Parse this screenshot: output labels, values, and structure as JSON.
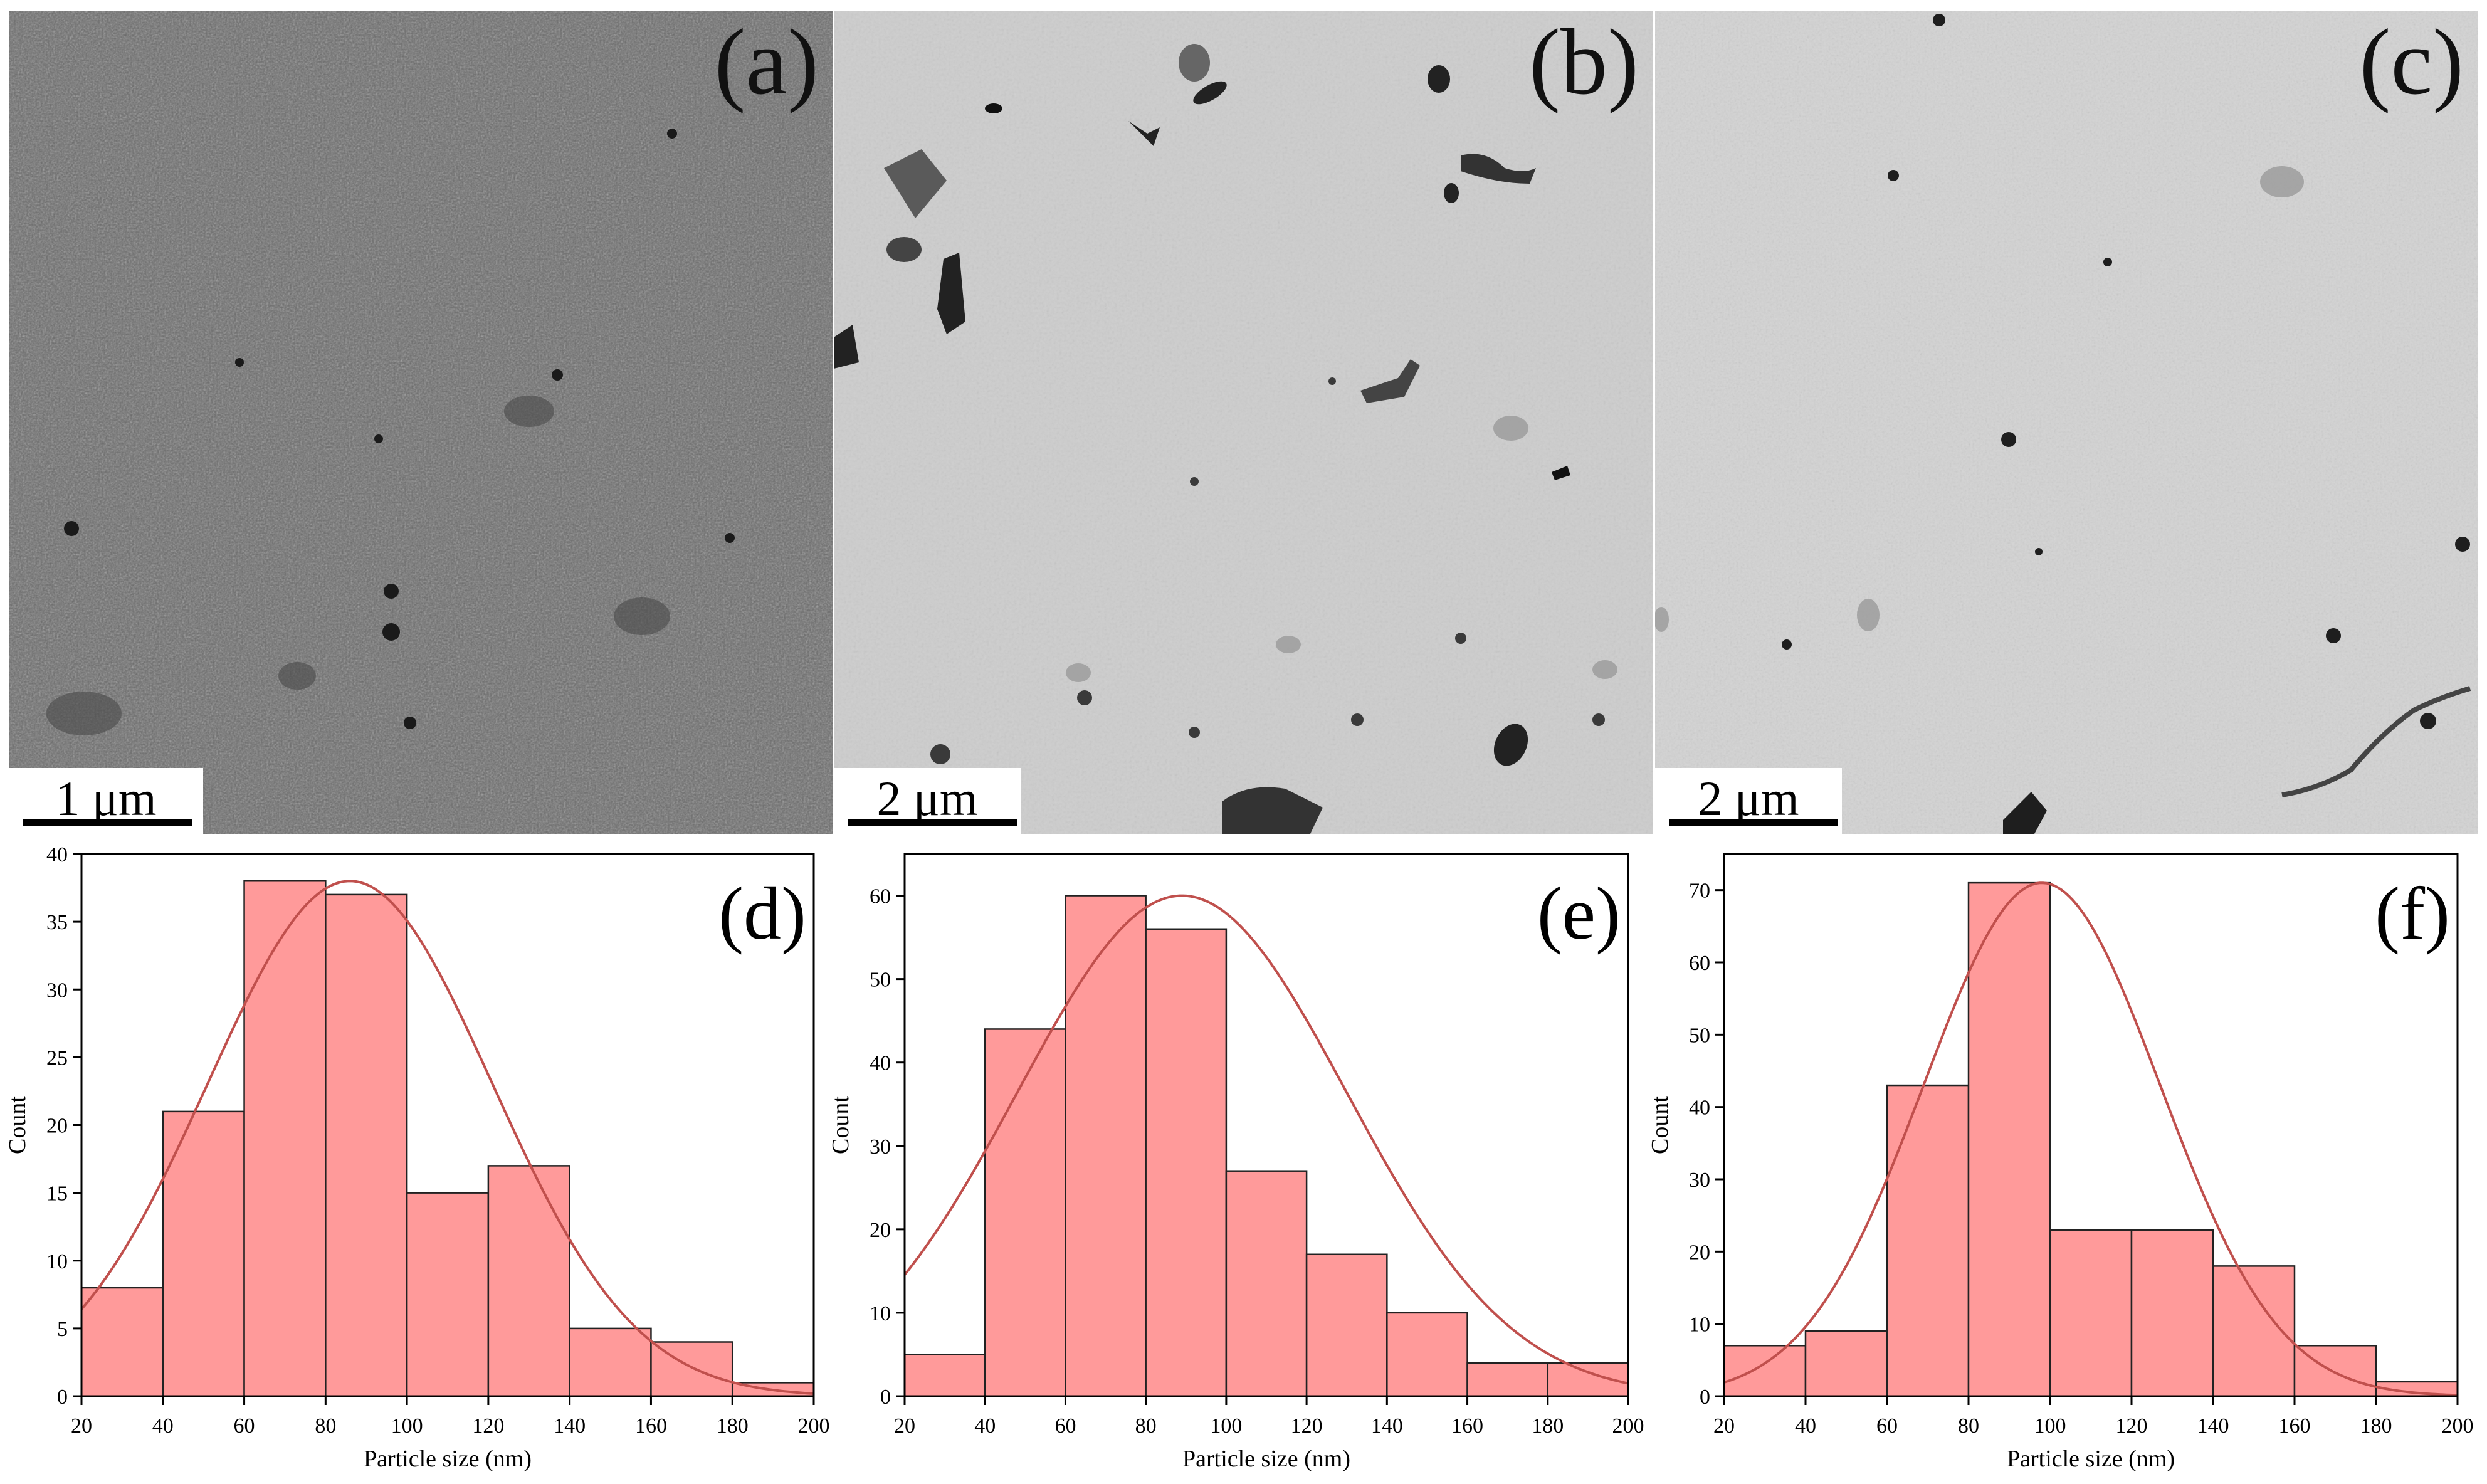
{
  "micrographs": [
    {
      "letter": "(a)",
      "scale_label": "1 μm"
    },
    {
      "letter": "(b)",
      "scale_label": "2 μm"
    },
    {
      "letter": "(c)",
      "scale_label": "2 μm"
    }
  ],
  "colors": {
    "bar_fill": "#ff9a9a",
    "bar_stroke": "#222222",
    "fit_curve": "#c0504d"
  },
  "chart_data": [
    {
      "type": "bar",
      "panel_letter": "(d)",
      "xlabel": "Particle size (nm)",
      "ylabel": "Count",
      "xlim": [
        20,
        200
      ],
      "ylim": [
        0,
        40
      ],
      "xticks": [
        20,
        40,
        60,
        80,
        100,
        120,
        140,
        160,
        180,
        200
      ],
      "yticks": [
        0,
        5,
        10,
        15,
        20,
        25,
        30,
        35,
        40
      ],
      "bin_edges": [
        20,
        40,
        60,
        80,
        100,
        120,
        140,
        160,
        180,
        200
      ],
      "values": [
        8,
        21,
        38,
        37,
        15,
        17,
        5,
        4,
        1
      ],
      "fit": {
        "type": "gaussian",
        "mean": 86,
        "sd": 35,
        "peak": 38
      }
    },
    {
      "type": "bar",
      "panel_letter": "(e)",
      "xlabel": "Particle size (nm)",
      "ylabel": "Count",
      "xlim": [
        20,
        200
      ],
      "ylim": [
        0,
        65
      ],
      "xticks": [
        20,
        40,
        60,
        80,
        100,
        120,
        140,
        160,
        180,
        200
      ],
      "yticks": [
        0,
        10,
        20,
        30,
        40,
        50,
        60
      ],
      "bin_edges": [
        20,
        40,
        60,
        80,
        100,
        120,
        140,
        160,
        180,
        200
      ],
      "values": [
        5,
        44,
        60,
        56,
        27,
        17,
        10,
        4,
        4
      ],
      "fit": {
        "type": "gaussian",
        "mean": 89,
        "sd": 41,
        "peak": 60
      }
    },
    {
      "type": "bar",
      "panel_letter": "(f)",
      "xlabel": "Particle size (nm)",
      "ylabel": "Count",
      "xlim": [
        20,
        200
      ],
      "ylim": [
        0,
        75
      ],
      "xticks": [
        20,
        40,
        60,
        80,
        100,
        120,
        140,
        160,
        180,
        200
      ],
      "yticks": [
        0,
        10,
        20,
        30,
        40,
        50,
        60,
        70
      ],
      "bin_edges": [
        20,
        40,
        60,
        80,
        100,
        120,
        140,
        160,
        180,
        200
      ],
      "values": [
        7,
        9,
        43,
        71,
        23,
        23,
        18,
        7,
        2
      ],
      "fit": {
        "type": "gaussian",
        "mean": 98,
        "sd": 29,
        "peak": 71
      }
    }
  ]
}
